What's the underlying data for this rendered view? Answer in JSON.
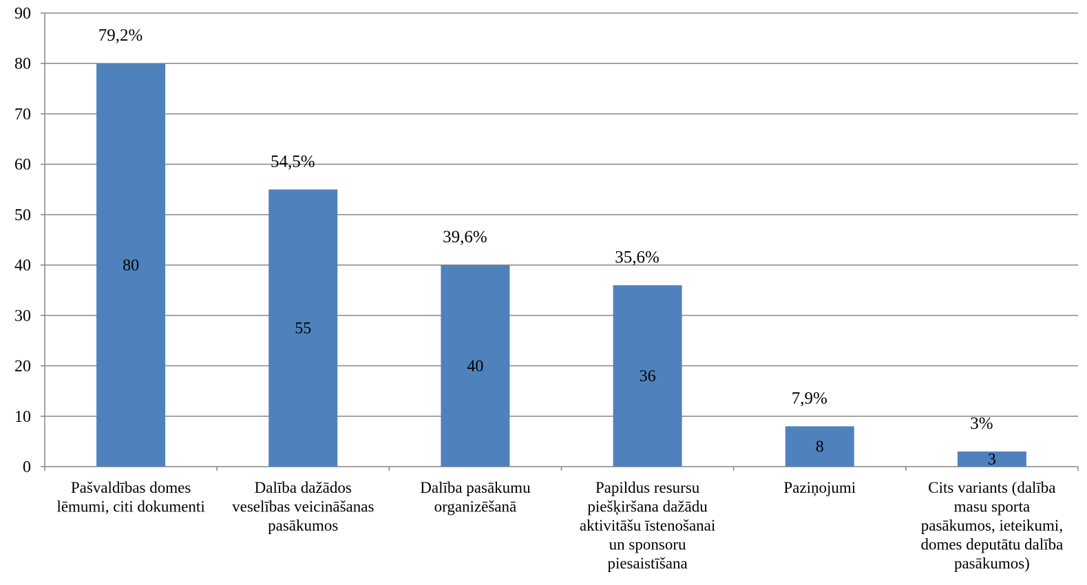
{
  "chart_data": {
    "type": "bar",
    "categories": [
      [
        "Pašvaldības domes",
        "lēmumi, citi dokumenti"
      ],
      [
        "Dalība dažādos",
        "veselības veicināšanas",
        "pasākumos"
      ],
      [
        "Dalība pasākumu",
        "organizēšanā"
      ],
      [
        "Papildus resursu",
        "piešķiršana dažādu",
        "aktivitāšu īstenošanai",
        "un sponsoru",
        "piesaistīšana"
      ],
      [
        "Paziņojumi"
      ],
      [
        "Cits variants (dalība",
        "masu sporta",
        "pasākumos, ieteikumi,",
        "domes deputātu dalība",
        "pasākumos)"
      ]
    ],
    "values": [
      80,
      55,
      40,
      36,
      8,
      3
    ],
    "value_labels": [
      "80",
      "55",
      "40",
      "36",
      "8",
      "3"
    ],
    "percent_labels": [
      "79,2%",
      "54,5%",
      "39,6%",
      "35,6%",
      "7,9%",
      "3%"
    ],
    "y_ticks": [
      "0",
      "10",
      "20",
      "30",
      "40",
      "50",
      "60",
      "70",
      "80",
      "90"
    ],
    "ylim": [
      0,
      90
    ],
    "grid": true,
    "bar_color": "#4f81bd",
    "grid_color": "#868686"
  }
}
